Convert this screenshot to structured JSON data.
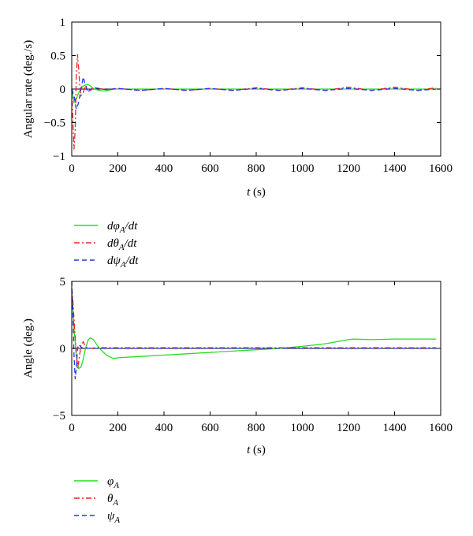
{
  "chart_data": [
    {
      "type": "line",
      "xlabel": "t (s)",
      "xlabel_var": "t",
      "xlabel_unit": " (s)",
      "ylabel": "Angular rate (deg./s)",
      "xlim": [
        0,
        1600
      ],
      "ylim": [
        -1,
        1
      ],
      "xticks": [
        0,
        200,
        400,
        600,
        800,
        1000,
        1200,
        1400,
        1600
      ],
      "yticks": [
        -1,
        -0.5,
        0,
        0.5,
        1
      ],
      "ytick_labels": [
        "−1",
        "−0.5",
        "0",
        "0.5",
        "1"
      ],
      "grid": false,
      "legend_position": "below-plot",
      "series": [
        {
          "name": "dφA/dt",
          "legend": {
            "pre": "dφ",
            "sub": "A",
            "post": "/dt"
          },
          "color": "#22dd22",
          "style": "solid",
          "x": [
            0,
            10,
            20,
            30,
            40,
            50,
            60,
            70,
            80,
            90,
            100,
            120,
            150,
            180,
            1600
          ],
          "y": [
            0,
            -0.2,
            -0.15,
            -0.05,
            0,
            0.05,
            0.06,
            0.07,
            0.05,
            0.02,
            0.0,
            -0.02,
            -0.03,
            0,
            0
          ]
        },
        {
          "name": "dθA/dt",
          "legend": {
            "pre": "dθ",
            "sub": "A",
            "post": "/dt"
          },
          "color": "#ee2222",
          "style": "dashdot",
          "x": [
            0,
            5,
            10,
            15,
            20,
            25,
            30,
            35,
            40,
            50,
            60,
            80,
            100,
            150,
            200,
            300,
            400,
            500,
            600,
            700,
            800,
            900,
            1000,
            1100,
            1200,
            1300,
            1400,
            1500,
            1580
          ],
          "y": [
            0,
            -0.5,
            -0.9,
            -0.6,
            0.2,
            0.52,
            0.3,
            0.05,
            -0.1,
            -0.05,
            0.05,
            -0.02,
            0.02,
            -0.01,
            0.01,
            -0.02,
            0.01,
            -0.02,
            0.01,
            -0.02,
            0.02,
            -0.02,
            0.02,
            -0.02,
            0.03,
            -0.02,
            0.03,
            -0.02,
            0.02
          ]
        },
        {
          "name": "dψA/dt",
          "legend": {
            "pre": "dψ",
            "sub": "A",
            "post": "/dt"
          },
          "color": "#2233ee",
          "style": "dashed",
          "x": [
            0,
            10,
            20,
            30,
            40,
            50,
            60,
            70,
            80,
            100,
            150,
            200,
            300,
            400,
            500,
            600,
            700,
            800,
            900,
            1000,
            1100,
            1200,
            1300,
            1400,
            1500,
            1580
          ],
          "y": [
            0,
            -0.1,
            -0.3,
            -0.2,
            0.0,
            0.18,
            0.05,
            -0.05,
            0.0,
            0.02,
            -0.01,
            0.01,
            -0.02,
            0.01,
            -0.02,
            0.01,
            -0.02,
            0.01,
            -0.02,
            0.01,
            -0.02,
            0.01,
            -0.02,
            0.01,
            -0.02,
            0.0
          ]
        }
      ]
    },
    {
      "type": "line",
      "xlabel": "t (s)",
      "xlabel_var": "t",
      "xlabel_unit": " (s)",
      "ylabel": "Angle (deg.)",
      "xlim": [
        0,
        1600
      ],
      "ylim": [
        -5,
        5
      ],
      "xticks": [
        0,
        200,
        400,
        600,
        800,
        1000,
        1200,
        1400,
        1600
      ],
      "yticks": [
        -5,
        0,
        5
      ],
      "ytick_labels": [
        "−5",
        "0",
        "5"
      ],
      "grid": false,
      "legend_position": "below-plot",
      "series": [
        {
          "name": "φA",
          "legend": {
            "pre": "φ",
            "sub": "A",
            "post": ""
          },
          "color": "#22dd22",
          "style": "solid",
          "x": [
            0,
            10,
            20,
            30,
            40,
            50,
            60,
            70,
            80,
            90,
            100,
            120,
            150,
            180,
            200,
            300,
            400,
            500,
            600,
            700,
            800,
            900,
            1000,
            1100,
            1150,
            1200,
            1220,
            1300,
            1400,
            1500,
            1580
          ],
          "y": [
            4.5,
            1.5,
            -0.5,
            -1.5,
            -1.4,
            -0.8,
            0,
            0.6,
            0.8,
            0.7,
            0.5,
            0,
            -0.5,
            -0.75,
            -0.7,
            -0.6,
            -0.5,
            -0.4,
            -0.3,
            -0.2,
            -0.1,
            0.0,
            0.15,
            0.35,
            0.5,
            0.65,
            0.7,
            0.65,
            0.7,
            0.7,
            0.7
          ]
        },
        {
          "name": "θA",
          "legend": {
            "pre": "θ",
            "sub": "A",
            "post": ""
          },
          "color": "#ee2222",
          "style": "dashdot",
          "x": [
            0,
            5,
            10,
            15,
            20,
            25,
            30,
            40,
            50,
            60,
            80,
            100,
            150,
            200,
            400,
            600,
            800,
            1000,
            1200,
            1400,
            1580
          ],
          "y": [
            4.5,
            3.5,
            2.2,
            0.8,
            -0.5,
            -1.5,
            -1.0,
            0.2,
            0.5,
            0.1,
            0.0,
            0.05,
            0.05,
            0.05,
            0.05,
            0.05,
            0.05,
            0.05,
            0.05,
            0.05,
            0.05
          ]
        },
        {
          "name": "ψA",
          "legend": {
            "pre": "ψ",
            "sub": "A",
            "post": ""
          },
          "color": "#2233ee",
          "style": "dashed",
          "x": [
            0,
            5,
            10,
            15,
            20,
            25,
            30,
            40,
            50,
            60,
            80,
            100,
            150,
            200,
            400,
            600,
            800,
            1000,
            1200,
            1400,
            1580
          ],
          "y": [
            5,
            2.5,
            -0.5,
            -2.3,
            -1.5,
            0,
            0.3,
            0.1,
            0,
            0,
            0,
            0,
            0,
            0,
            0,
            0,
            0,
            0,
            0,
            0,
            0
          ]
        }
      ]
    }
  ]
}
